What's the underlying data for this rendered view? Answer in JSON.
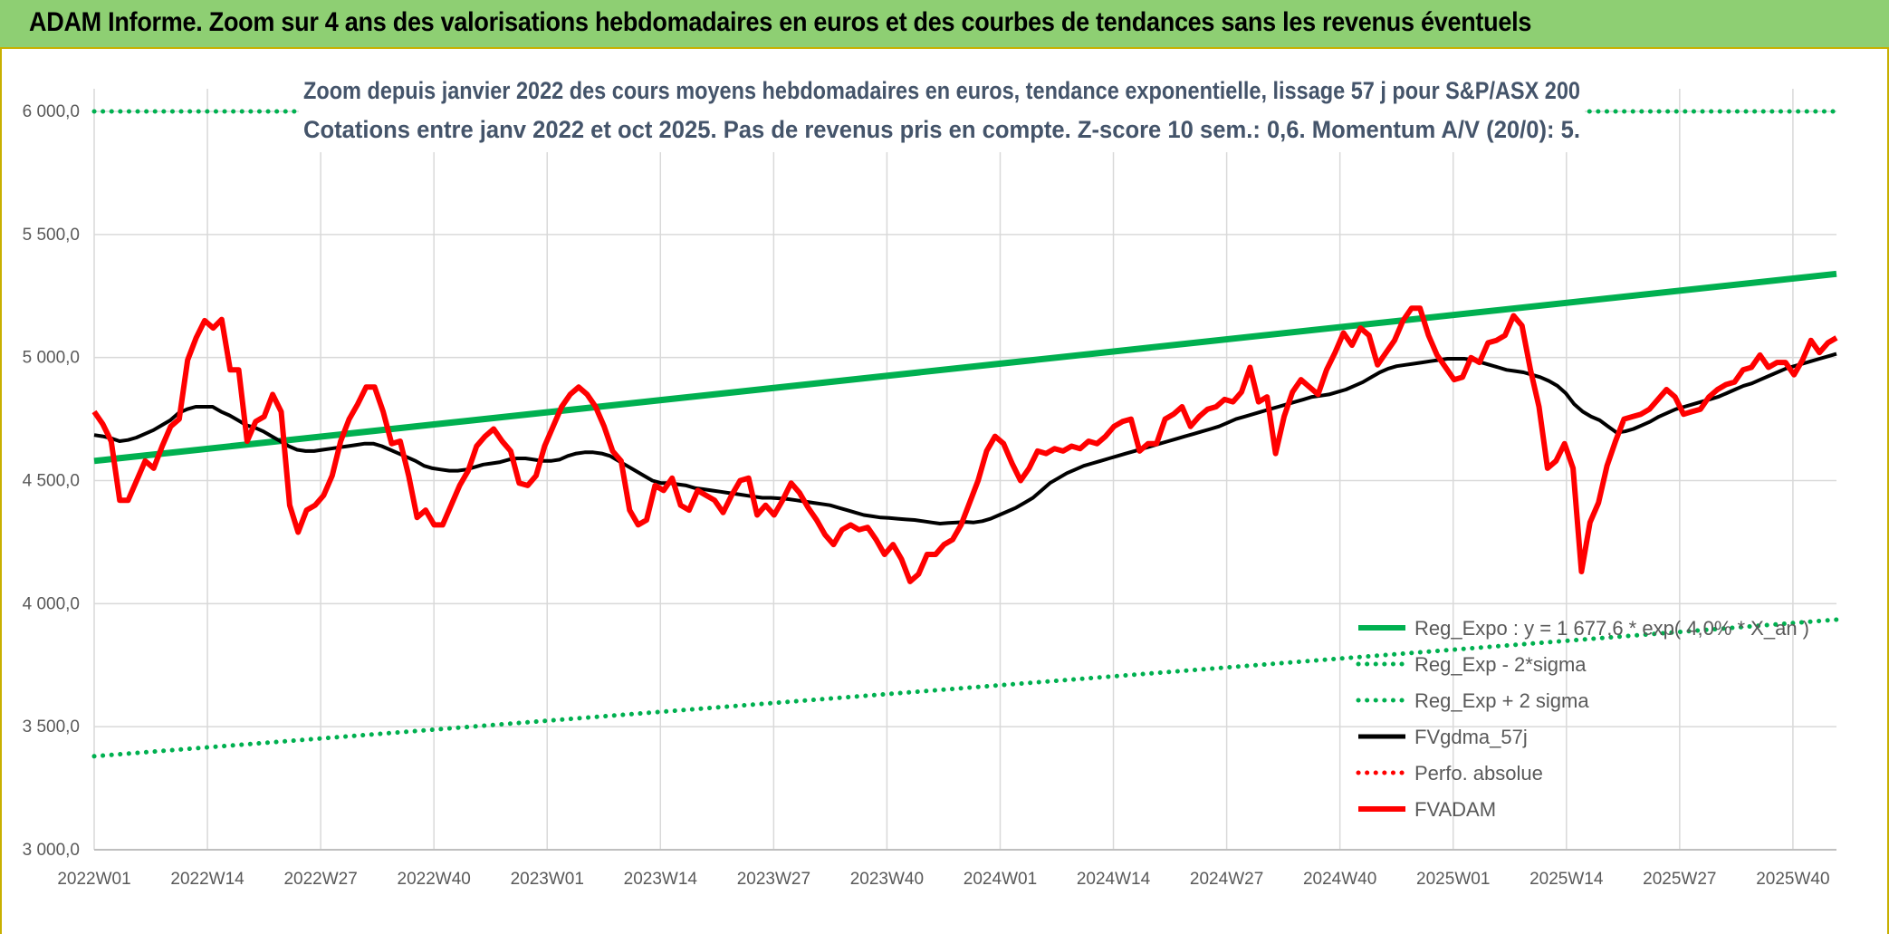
{
  "header": {
    "title": "ADAM Informe. Zoom sur 4 ans des valorisations hebdomadaires en euros et des courbes de tendances sans les revenus éventuels"
  },
  "chart_data": {
    "type": "line",
    "title": "Zoom depuis janvier 2022 des cours moyens hebdomadaires en euros, tendance exponentielle, lissage 57 j pour S&P/ASX 200",
    "subtitle": "Cotations entre janv 2022 et oct 2025. Pas de revenus pris en compte. Z-score 10 sem.: 0,6. Momentum A/V (20/0): 5.",
    "ylim": [
      3000,
      6000
    ],
    "y_ticks": [
      "3 000,0",
      "3 500,0",
      "4 000,0",
      "4 500,0",
      "5 000,0",
      "5 500,0",
      "6 000,0"
    ],
    "y_tick_values": [
      3000,
      3500,
      4000,
      4500,
      5000,
      5500,
      6000
    ],
    "x_ticks": [
      "2022W01",
      "2022W14",
      "2022W27",
      "2022W40",
      "2023W01",
      "2023W14",
      "2023W27",
      "2023W40",
      "2024W01",
      "2024W14",
      "2024W27",
      "2024W40",
      "2025W01",
      "2025W14",
      "2025W27",
      "2025W40"
    ],
    "x_range_weeks": [
      0,
      200
    ],
    "grid": true,
    "legend_position": "bottom-right",
    "colors": {
      "reg": "#00b050",
      "band": "#00b050",
      "ma": "#000000",
      "perf": "#ff0000",
      "price": "#ff0000",
      "grid": "#d9d9d9"
    },
    "series": [
      {
        "name": "Reg_Expo : y = 1 677,6 * exp( 4,0% * X_an )",
        "style": "solid-thick",
        "color": "#00b050",
        "values": [
          4580,
          5340
        ]
      },
      {
        "name": "Reg_Exp - 2*sigma",
        "style": "dotted",
        "color": "#00b050",
        "values": [
          3380,
          3935
        ]
      },
      {
        "name": "Reg_Exp + 2 sigma",
        "style": "dotted",
        "color": "#00b050",
        "values": [
          6000,
          6000
        ]
      },
      {
        "name": "FVgdma_57j",
        "style": "solid",
        "color": "#000000",
        "values": [
          4685,
          4680,
          4672,
          4660,
          4665,
          4675,
          4690,
          4705,
          4725,
          4745,
          4775,
          4790,
          4800,
          4800,
          4800,
          4780,
          4765,
          4745,
          4725,
          4715,
          4700,
          4680,
          4660,
          4640,
          4625,
          4620,
          4620,
          4625,
          4630,
          4635,
          4640,
          4645,
          4650,
          4650,
          4640,
          4625,
          4610,
          4595,
          4580,
          4560,
          4550,
          4545,
          4540,
          4540,
          4545,
          4555,
          4565,
          4570,
          4575,
          4585,
          4590,
          4590,
          4585,
          4580,
          4580,
          4585,
          4600,
          4610,
          4615,
          4615,
          4610,
          4600,
          4580,
          4560,
          4540,
          4520,
          4500,
          4490,
          4490,
          4485,
          4480,
          4470,
          4465,
          4460,
          4455,
          4450,
          4445,
          4440,
          4435,
          4430,
          4430,
          4428,
          4425,
          4420,
          4415,
          4410,
          4405,
          4400,
          4390,
          4380,
          4370,
          4360,
          4355,
          4350,
          4348,
          4345,
          4342,
          4340,
          4335,
          4330,
          4325,
          4328,
          4330,
          4332,
          4330,
          4335,
          4345,
          4360,
          4375,
          4390,
          4410,
          4430,
          4460,
          4490,
          4510,
          4530,
          4545,
          4560,
          4570,
          4580,
          4590,
          4600,
          4610,
          4620,
          4630,
          4640,
          4650,
          4660,
          4670,
          4680,
          4690,
          4700,
          4710,
          4720,
          4735,
          4750,
          4760,
          4770,
          4780,
          4790,
          4800,
          4810,
          4820,
          4830,
          4840,
          4845,
          4850,
          4860,
          4870,
          4885,
          4900,
          4920,
          4940,
          4955,
          4965,
          4970,
          4975,
          4980,
          4985,
          4990,
          4995,
          4995,
          4995,
          4990,
          4980,
          4970,
          4960,
          4950,
          4945,
          4940,
          4930,
          4920,
          4905,
          4885,
          4855,
          4810,
          4780,
          4760,
          4745,
          4720,
          4695,
          4700,
          4710,
          4725,
          4740,
          4760,
          4775,
          4790,
          4800,
          4810,
          4820,
          4830,
          4840,
          4855,
          4870,
          4885,
          4895,
          4910,
          4925,
          4940,
          4955,
          4965,
          4975,
          4985,
          4995,
          5005,
          5015
        ]
      },
      {
        "name": "Perfo. absolue",
        "style": "dotted",
        "color": "#ff0000",
        "values": []
      },
      {
        "name": "FVADAM",
        "style": "solid-thick",
        "color": "#ff0000",
        "values": [
          4780,
          4730,
          4660,
          4420,
          4420,
          4500,
          4580,
          4550,
          4640,
          4720,
          4750,
          4990,
          5080,
          5150,
          5120,
          5155,
          4950,
          4950,
          4660,
          4740,
          4760,
          4850,
          4780,
          4400,
          4290,
          4380,
          4400,
          4440,
          4520,
          4660,
          4750,
          4810,
          4880,
          4880,
          4780,
          4650,
          4660,
          4520,
          4350,
          4380,
          4320,
          4320,
          4400,
          4480,
          4540,
          4640,
          4680,
          4710,
          4660,
          4620,
          4490,
          4480,
          4520,
          4640,
          4720,
          4800,
          4850,
          4880,
          4850,
          4800,
          4720,
          4620,
          4580,
          4380,
          4320,
          4340,
          4480,
          4460,
          4510,
          4400,
          4380,
          4460,
          4440,
          4420,
          4370,
          4440,
          4500,
          4510,
          4360,
          4400,
          4360,
          4420,
          4490,
          4450,
          4390,
          4340,
          4280,
          4240,
          4300,
          4320,
          4300,
          4310,
          4260,
          4200,
          4240,
          4180,
          4090,
          4120,
          4200,
          4200,
          4240,
          4260,
          4320,
          4410,
          4500,
          4620,
          4680,
          4650,
          4570,
          4500,
          4550,
          4620,
          4610,
          4630,
          4620,
          4640,
          4630,
          4660,
          4650,
          4680,
          4720,
          4740,
          4750,
          4620,
          4650,
          4650,
          4750,
          4770,
          4800,
          4720,
          4760,
          4790,
          4800,
          4830,
          4820,
          4860,
          4960,
          4820,
          4840,
          4610,
          4760,
          4860,
          4910,
          4880,
          4850,
          4950,
          5020,
          5100,
          5050,
          5120,
          5090,
          4970,
          5020,
          5070,
          5150,
          5200,
          5200,
          5090,
          5010,
          4960,
          4910,
          4920,
          5000,
          4980,
          5060,
          5070,
          5090,
          5170,
          5130,
          4950,
          4800,
          4550,
          4580,
          4650,
          4550,
          4130,
          4330,
          4410,
          4560,
          4660,
          4750,
          4760,
          4770,
          4790,
          4830,
          4870,
          4840,
          4770,
          4780,
          4790,
          4840,
          4870,
          4890,
          4900,
          4950,
          4960,
          5010,
          4960,
          4980,
          4980,
          4930,
          4990,
          5070,
          5020,
          5060,
          5080
        ]
      }
    ]
  }
}
